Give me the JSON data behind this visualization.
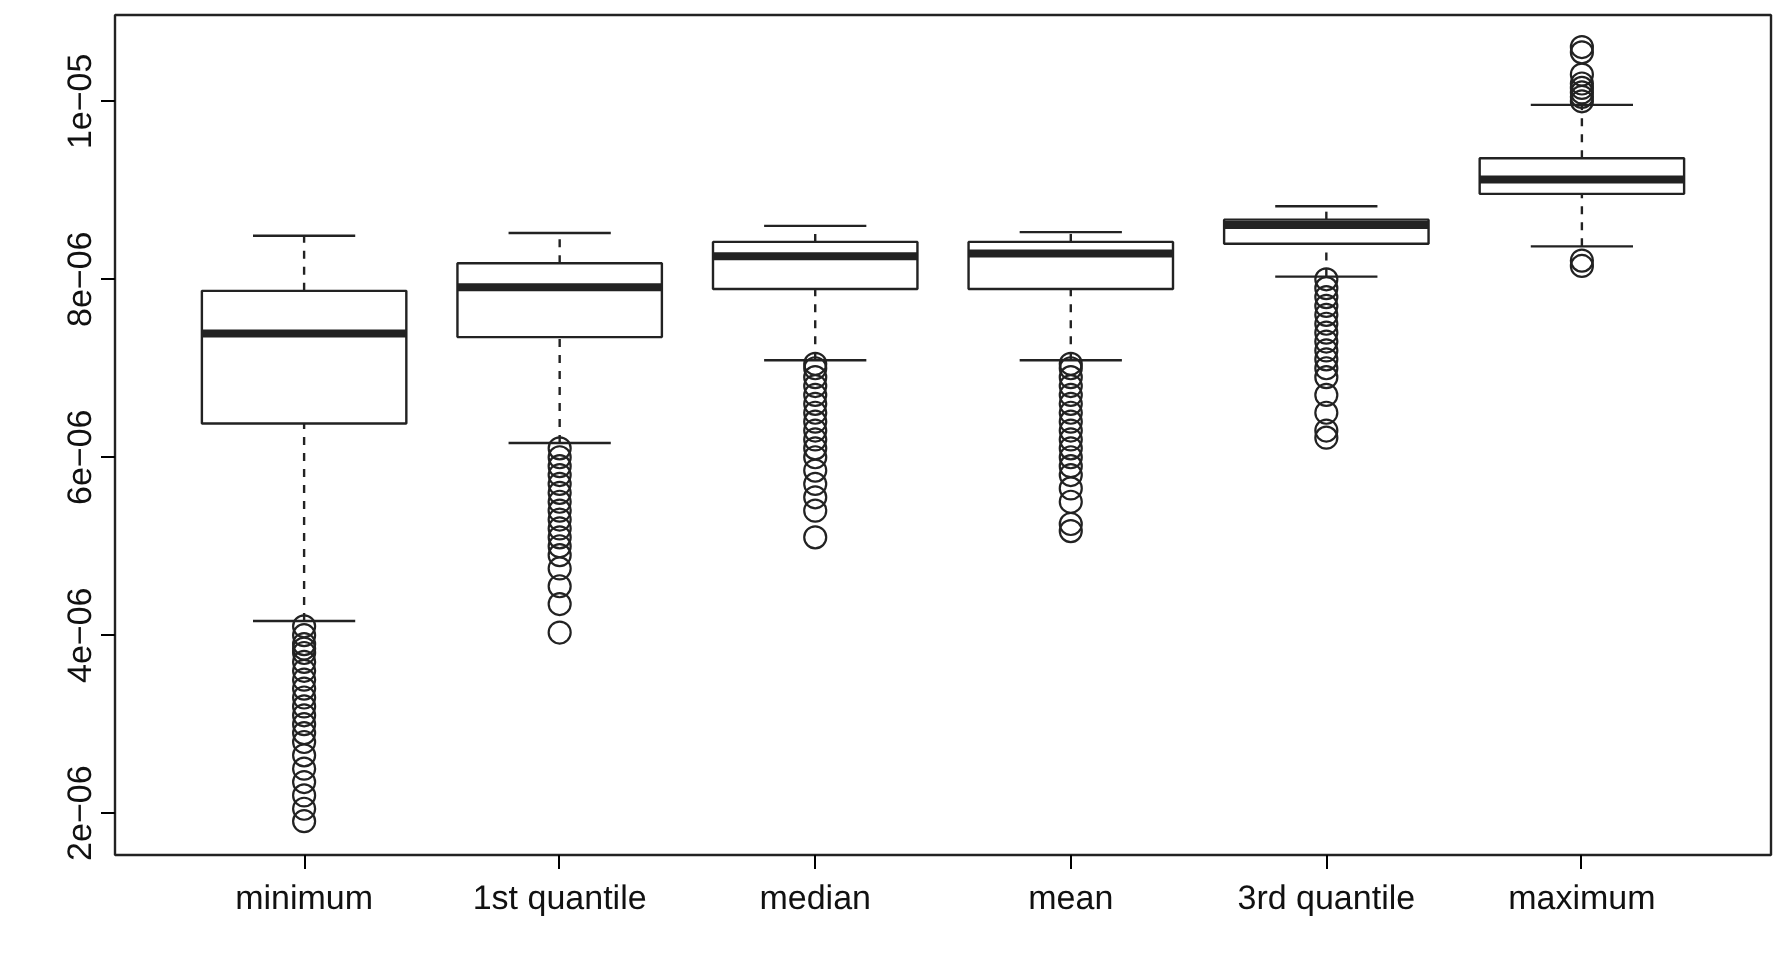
{
  "chart_data": {
    "type": "box",
    "categories": [
      "minimum",
      "1st quantile",
      "median",
      "mean",
      "3rd quantile",
      "maximum"
    ],
    "boxes": [
      {
        "low": 4.16e-06,
        "q1": 6.38e-06,
        "median": 7.39e-06,
        "q3": 7.87e-06,
        "high": 8.49e-06,
        "outliers": [
          4.1e-06,
          4e-06,
          3.9e-06,
          3.85e-06,
          3.8e-06,
          3.7e-06,
          3.6e-06,
          3.5e-06,
          3.4e-06,
          3.3e-06,
          3.2e-06,
          3.1e-06,
          3e-06,
          2.9e-06,
          2.8e-06,
          2.65e-06,
          2.5e-06,
          2.35e-06,
          2.2e-06,
          2.05e-06,
          1.91e-06
        ]
      },
      {
        "low": 6.16e-06,
        "q1": 7.35e-06,
        "median": 7.91e-06,
        "q3": 8.18e-06,
        "high": 8.52e-06,
        "outliers": [
          6.1e-06,
          6e-06,
          5.9e-06,
          5.8e-06,
          5.7e-06,
          5.6e-06,
          5.5e-06,
          5.4e-06,
          5.3e-06,
          5.2e-06,
          5.1e-06,
          5e-06,
          4.9e-06,
          4.75e-06,
          4.55e-06,
          4.35e-06,
          4.03e-06
        ]
      },
      {
        "low": 7.09e-06,
        "q1": 7.89e-06,
        "median": 8.26e-06,
        "q3": 8.42e-06,
        "high": 8.6e-06,
        "outliers": [
          7.05e-06,
          7e-06,
          6.9e-06,
          6.8e-06,
          6.7e-06,
          6.6e-06,
          6.5e-06,
          6.4e-06,
          6.3e-06,
          6.2e-06,
          6.1e-06,
          6e-06,
          5.85e-06,
          5.7e-06,
          5.55e-06,
          5.4e-06,
          5.1e-06
        ]
      },
      {
        "low": 7.09e-06,
        "q1": 7.89e-06,
        "median": 8.29e-06,
        "q3": 8.42e-06,
        "high": 8.53e-06,
        "outliers": [
          7.05e-06,
          7e-06,
          6.9e-06,
          6.8e-06,
          6.7e-06,
          6.6e-06,
          6.5e-06,
          6.4e-06,
          6.3e-06,
          6.2e-06,
          6.1e-06,
          6e-06,
          5.9e-06,
          5.8e-06,
          5.65e-06,
          5.5e-06,
          5.25e-06,
          5.17e-06
        ]
      },
      {
        "low": 8.03e-06,
        "q1": 8.4e-06,
        "median": 8.61e-06,
        "q3": 8.67e-06,
        "high": 8.82e-06,
        "outliers": [
          8e-06,
          7.9e-06,
          7.8e-06,
          7.7e-06,
          7.6e-06,
          7.5e-06,
          7.4e-06,
          7.3e-06,
          7.2e-06,
          7.1e-06,
          7e-06,
          6.9e-06,
          6.7e-06,
          6.5e-06,
          6.3e-06,
          6.22e-06
        ]
      },
      {
        "low": 8.37e-06,
        "q1": 8.96e-06,
        "median": 9.12e-06,
        "q3": 9.36e-06,
        "high": 9.96e-06,
        "outliers": [
          8.21e-06,
          8.15e-06,
          1e-05,
          1.005e-05,
          1.01e-05,
          1.015e-05,
          1.02e-05,
          1.03e-05,
          1.055e-05,
          1.061e-05
        ]
      }
    ],
    "ylim": [
      1.53e-06,
      1.097e-05
    ],
    "yticks": [
      {
        "value": 2e-06,
        "label": "2e−06"
      },
      {
        "value": 4e-06,
        "label": "4e−06"
      },
      {
        "value": 6e-06,
        "label": "6e−06"
      },
      {
        "value": 8e-06,
        "label": "8e−06"
      },
      {
        "value": 1e-05,
        "label": "1e−05"
      }
    ],
    "grid": false
  }
}
